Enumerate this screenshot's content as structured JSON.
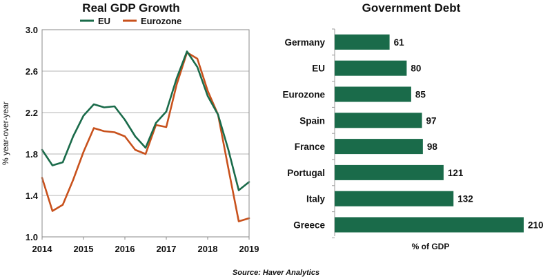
{
  "source": "Source: Haver Analytics",
  "chart_data": [
    {
      "type": "line",
      "title": "Real GDP Growth",
      "xlabel": "",
      "ylabel": "% year-over-year",
      "xlim": [
        2014,
        2019
      ],
      "ylim": [
        1.0,
        3.0
      ],
      "x_ticks": [
        "2014",
        "2015",
        "2016",
        "2017",
        "2018",
        "2019"
      ],
      "y_ticks": [
        "3.0",
        "2.6",
        "2.2",
        "1.8",
        "1.4",
        "1.0"
      ],
      "colors": {
        "EU": "#1a6b4a",
        "Eurozone": "#c8511c"
      },
      "series": [
        {
          "name": "EU",
          "x": [
            2014.0,
            2014.25,
            2014.5,
            2014.75,
            2015.0,
            2015.25,
            2015.5,
            2015.75,
            2016.0,
            2016.25,
            2016.5,
            2016.75,
            2017.0,
            2017.25,
            2017.5,
            2017.75,
            2018.0,
            2018.25,
            2018.5,
            2018.75,
            2019.0
          ],
          "values": [
            1.84,
            1.69,
            1.72,
            1.97,
            2.17,
            2.28,
            2.25,
            2.26,
            2.13,
            1.97,
            1.86,
            2.1,
            2.21,
            2.53,
            2.79,
            2.64,
            2.36,
            2.18,
            1.84,
            1.45,
            1.53
          ]
        },
        {
          "name": "Eurozone",
          "x": [
            2014.0,
            2014.25,
            2014.5,
            2014.75,
            2015.0,
            2015.25,
            2015.5,
            2015.75,
            2016.0,
            2016.25,
            2016.5,
            2016.75,
            2017.0,
            2017.25,
            2017.5,
            2017.75,
            2018.0,
            2018.25,
            2018.5,
            2018.75,
            2019.0
          ],
          "values": [
            1.57,
            1.25,
            1.31,
            1.55,
            1.82,
            2.05,
            2.02,
            2.01,
            1.97,
            1.84,
            1.8,
            2.08,
            2.06,
            2.47,
            2.78,
            2.72,
            2.41,
            2.18,
            1.66,
            1.15,
            1.18
          ]
        }
      ]
    },
    {
      "type": "bar",
      "orientation": "horizontal",
      "title": "Government Debt",
      "xlabel": "% of GDP",
      "ylabel": "",
      "xlim": [
        0,
        210
      ],
      "bar_color": "#1a6b4a",
      "categories": [
        "Germany",
        "EU",
        "Eurozone",
        "Spain",
        "France",
        "Portugal",
        "Italy",
        "Greece"
      ],
      "values": [
        61,
        80,
        85,
        97,
        98,
        121,
        132,
        210
      ]
    }
  ]
}
